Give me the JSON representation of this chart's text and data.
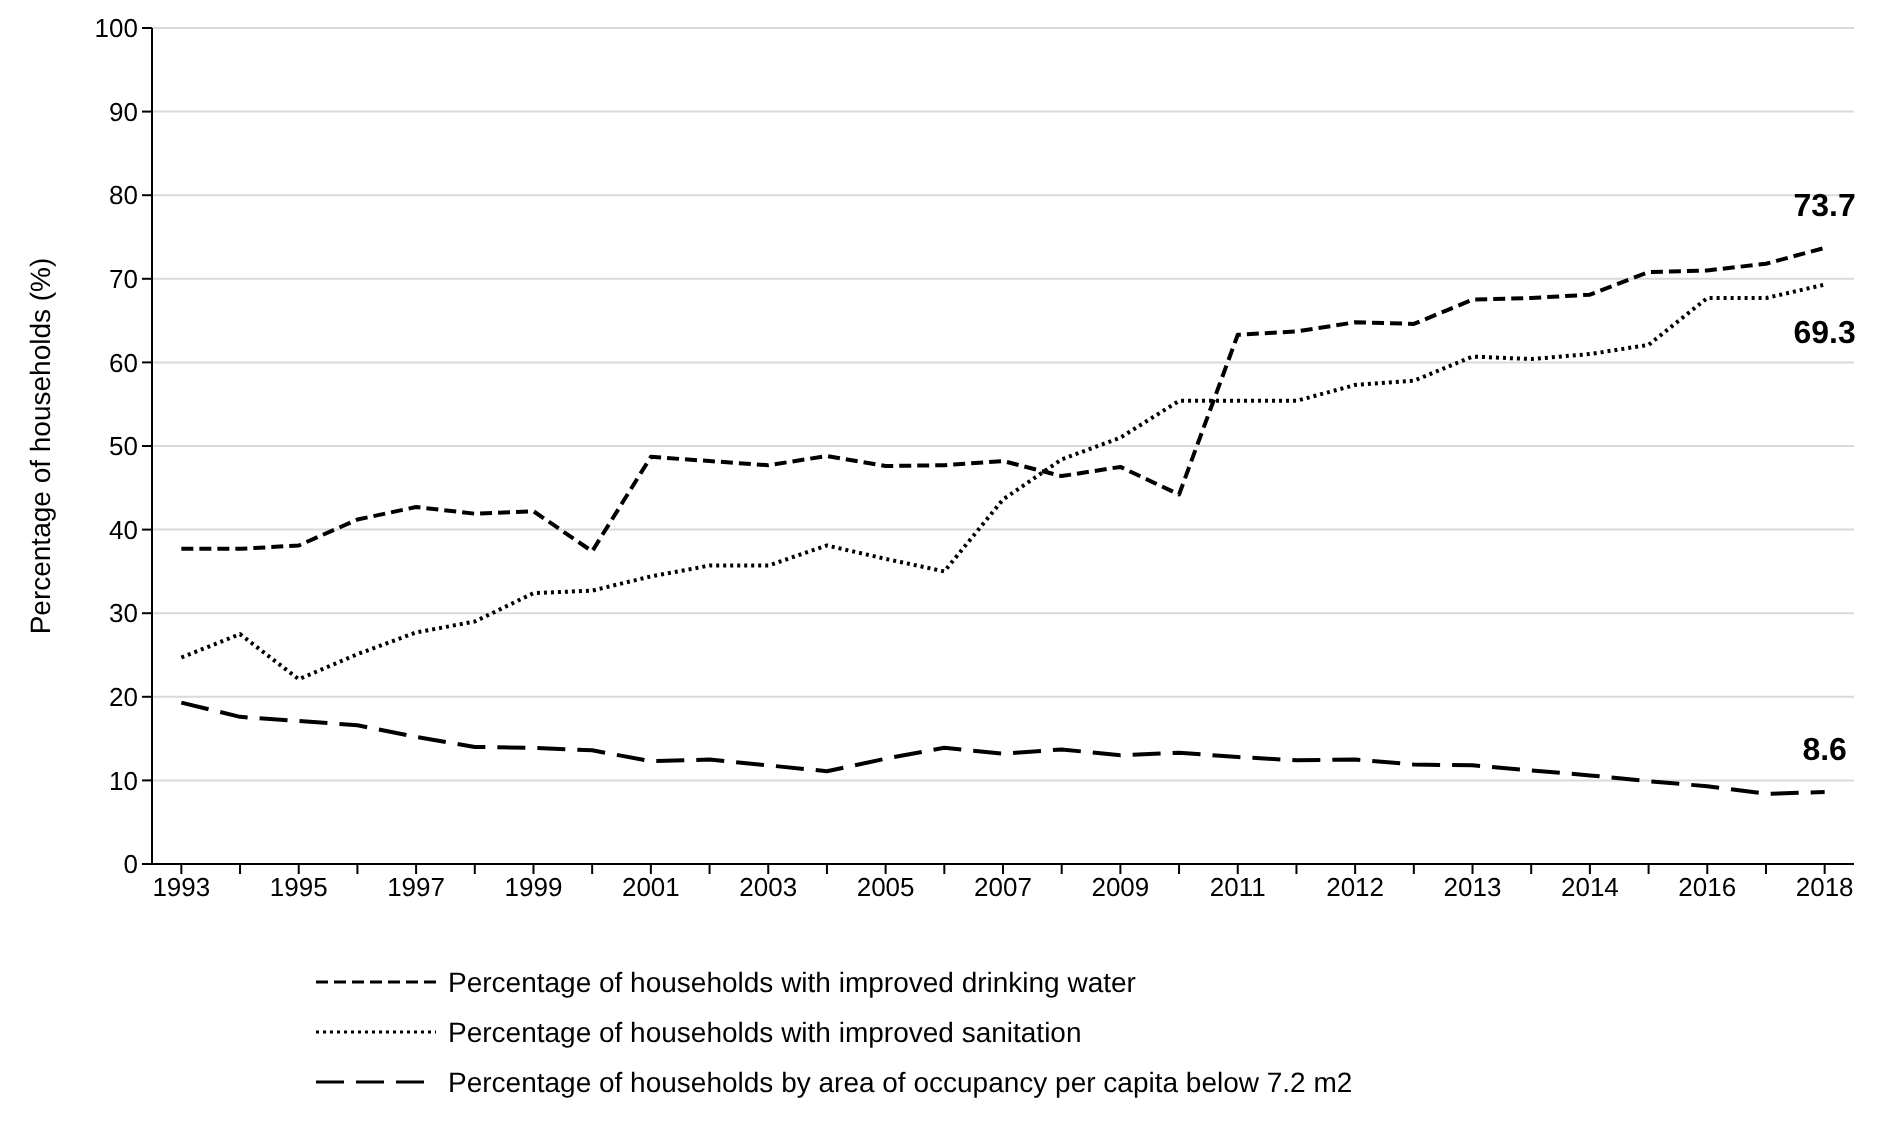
{
  "chart_data": {
    "type": "line",
    "ylabel": "Percentage of households (%)",
    "categories": [
      "1993",
      null,
      "1995",
      null,
      "1997",
      null,
      "1999",
      null,
      "2001",
      null,
      "2003",
      null,
      "2005",
      null,
      "2007",
      null,
      "2009",
      null,
      "2011",
      null,
      "2012",
      null,
      "2013",
      null,
      "2014",
      null,
      "2016",
      null,
      "2018"
    ],
    "series": [
      {
        "name": "Percentage of households with improved drinking water",
        "color": "#000000",
        "line_style": "dashed",
        "values": [
          37.7,
          37.7,
          38.1,
          41.2,
          42.7,
          41.9,
          42.2,
          37.4,
          48.7,
          48.2,
          47.7,
          48.8,
          47.6,
          47.7,
          48.2,
          46.4,
          47.5,
          44.2,
          63.3,
          63.7,
          64.8,
          64.6,
          67.5,
          67.7,
          68.1,
          70.8,
          71.0,
          71.8,
          73.7
        ]
      },
      {
        "name": "Percentage of households with improved sanitation",
        "color": "#000000",
        "line_style": "dotted",
        "values": [
          24.7,
          27.5,
          22.1,
          25.1,
          27.7,
          29.0,
          32.4,
          32.7,
          34.4,
          35.7,
          35.7,
          38.1,
          36.5,
          35.0,
          43.6,
          48.4,
          51.0,
          55.4,
          55.4,
          55.4,
          57.3,
          57.8,
          60.7,
          60.4,
          61.0,
          62.1,
          67.7,
          67.7,
          69.3
        ]
      },
      {
        "name": "Percentage of households by area of occupancy per capita below 7.2 m2",
        "color": "#000000",
        "line_style": "dashed",
        "values": [
          19.3,
          17.6,
          17.1,
          16.6,
          15.2,
          14.0,
          13.9,
          13.6,
          12.3,
          12.5,
          11.8,
          11.1,
          12.6,
          13.9,
          13.2,
          13.7,
          13.0,
          13.3,
          12.8,
          12.4,
          12.5,
          11.9,
          11.8,
          11.2,
          10.6,
          9.9,
          9.3,
          8.4,
          8.6
        ]
      }
    ],
    "ylim": [
      0,
      100
    ],
    "yticks": [
      0,
      10,
      20,
      30,
      40,
      50,
      60,
      70,
      80,
      90,
      100
    ],
    "grid": "y",
    "legend": "bottom",
    "marker": "none",
    "annotations": [
      {
        "text": "73.7",
        "x": "2018",
        "y": 73.7
      },
      {
        "text": "69.3",
        "x": "2018",
        "y": 69.3
      },
      {
        "text": "8.6",
        "x": "2018",
        "y": 8.6
      }
    ]
  }
}
